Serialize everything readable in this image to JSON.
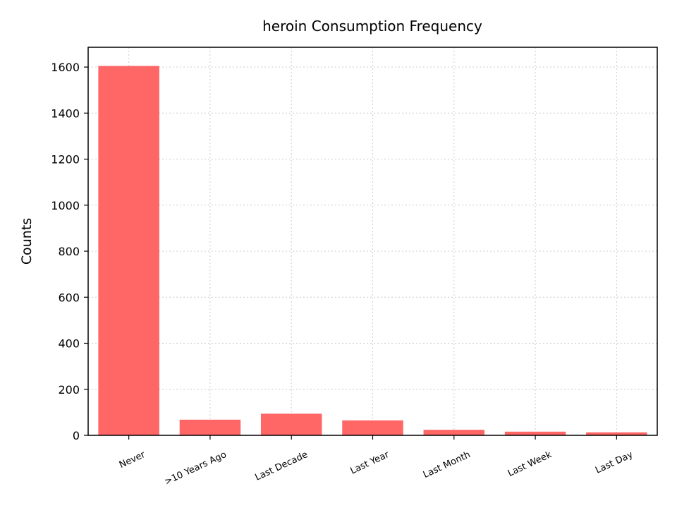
{
  "chart_data": {
    "type": "bar",
    "title": "heroin Consumption Frequency",
    "xlabel": "",
    "ylabel": "Counts",
    "categories": [
      "Never",
      ">10 Years Ago",
      "Last Decade",
      "Last Year",
      "Last Month",
      "Last Week",
      "Last Day"
    ],
    "values": [
      1605,
      68,
      94,
      65,
      24,
      16,
      13
    ],
    "ylim": [
      0,
      1686
    ],
    "yticks": [
      0,
      200,
      400,
      600,
      800,
      1000,
      1200,
      1400,
      1600
    ],
    "grid": true,
    "bar_color": "#ff6666",
    "grid_color": "#cccccc"
  }
}
